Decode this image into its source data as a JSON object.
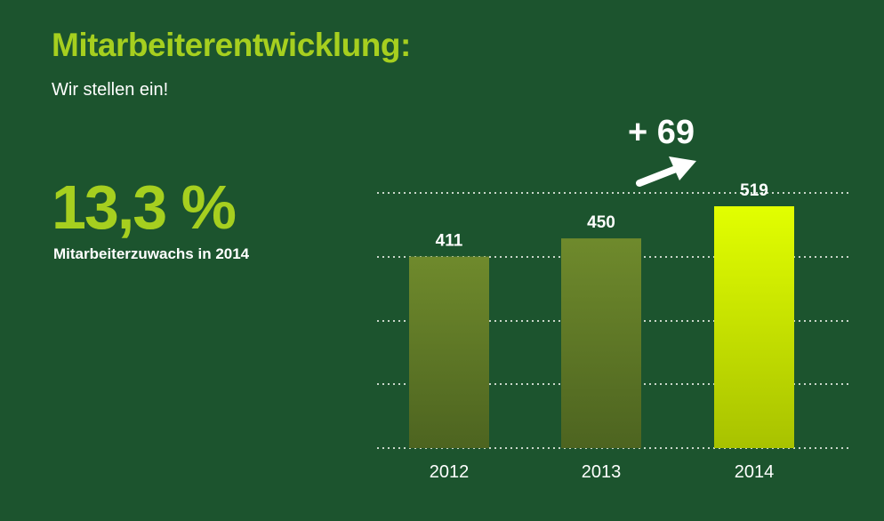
{
  "header": {
    "title": "Mitarbeiterentwicklung:",
    "subtitle": "Wir stellen ein!"
  },
  "highlight": {
    "value": "13,3 %",
    "caption": "Mitarbeiterzuwachs in 2014"
  },
  "delta_label": "+ 69",
  "colors": {
    "background": "#1c542e",
    "accent": "#a6cf1f",
    "bar_default_top": "#6f8a2c",
    "bar_default_bottom": "#4d6420",
    "bar_highlight_top": "#e2ff00",
    "bar_highlight_bottom": "#a8c200"
  },
  "chart_data": {
    "type": "bar",
    "categories": [
      "2012",
      "2013",
      "2014"
    ],
    "values": [
      411,
      450,
      519
    ],
    "data_labels": [
      "411",
      "450",
      "519"
    ],
    "highlight_category": "2014",
    "title": "",
    "xlabel": "",
    "ylabel": "",
    "grid": true,
    "ylim": [
      0,
      519
    ]
  }
}
